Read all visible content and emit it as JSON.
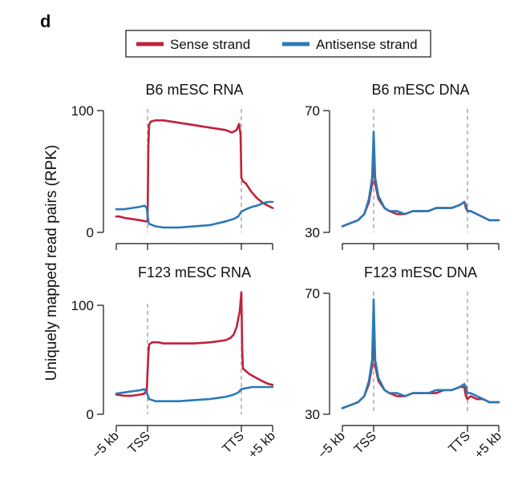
{
  "figure": {
    "panel_letter": "d",
    "ylabel": "Uniquely mapped read pairs (RPK)"
  },
  "legend": {
    "entries": [
      {
        "name": "Sense strand",
        "color": "#c0213a"
      },
      {
        "name": "Antisense strand",
        "color": "#2a7ab5"
      }
    ]
  },
  "x_ticks": [
    "−5 kb",
    "TSS",
    "TTS",
    "+5 kb"
  ],
  "chart_data": [
    {
      "type": "line",
      "title": "B6 mESC RNA",
      "ylim": [
        0,
        100
      ],
      "y_ticks": [
        "0",
        "100"
      ],
      "x": [
        "−5 kb",
        "TSS",
        "TTS",
        "+5 kb"
      ],
      "series": [
        {
          "name": "Sense strand",
          "color": "#c0213a",
          "points": [
            [
              0,
              13
            ],
            [
              0.02,
              13
            ],
            [
              0.05,
              12
            ],
            [
              0.1,
              11
            ],
            [
              0.15,
              10
            ],
            [
              0.19,
              9
            ],
            [
              0.2,
              9
            ],
            [
              0.205,
              70
            ],
            [
              0.21,
              88
            ],
            [
              0.22,
              91
            ],
            [
              0.25,
              92
            ],
            [
              0.3,
              92
            ],
            [
              0.35,
              91
            ],
            [
              0.4,
              90
            ],
            [
              0.45,
              89
            ],
            [
              0.5,
              88
            ],
            [
              0.55,
              87
            ],
            [
              0.6,
              86
            ],
            [
              0.65,
              85
            ],
            [
              0.7,
              84
            ],
            [
              0.74,
              82
            ],
            [
              0.77,
              84
            ],
            [
              0.785,
              89
            ],
            [
              0.795,
              80
            ],
            [
              0.8,
              45
            ],
            [
              0.81,
              42
            ],
            [
              0.83,
              40
            ],
            [
              0.86,
              34
            ],
            [
              0.9,
              28
            ],
            [
              0.94,
              24
            ],
            [
              0.97,
              22
            ],
            [
              1.0,
              20
            ]
          ]
        },
        {
          "name": "Antisense strand",
          "color": "#2a7ab5",
          "points": [
            [
              0,
              19
            ],
            [
              0.05,
              19
            ],
            [
              0.1,
              20
            ],
            [
              0.15,
              21
            ],
            [
              0.18,
              22
            ],
            [
              0.195,
              20
            ],
            [
              0.205,
              9
            ],
            [
              0.21,
              7
            ],
            [
              0.25,
              5
            ],
            [
              0.3,
              4
            ],
            [
              0.4,
              4
            ],
            [
              0.5,
              5
            ],
            [
              0.6,
              6
            ],
            [
              0.7,
              9
            ],
            [
              0.75,
              11
            ],
            [
              0.78,
              13
            ],
            [
              0.8,
              17
            ],
            [
              0.83,
              19
            ],
            [
              0.87,
              21
            ],
            [
              0.9,
              22
            ],
            [
              0.94,
              24
            ],
            [
              0.97,
              25
            ],
            [
              1.0,
              25
            ]
          ]
        }
      ]
    },
    {
      "type": "line",
      "title": "B6 mESC DNA",
      "ylim": [
        30,
        70
      ],
      "y_ticks": [
        "30",
        "70"
      ],
      "x": [
        "−5 kb",
        "TSS",
        "TTS",
        "+5 kb"
      ],
      "series": [
        {
          "name": "Sense strand",
          "color": "#c0213a",
          "points": [
            [
              0,
              32
            ],
            [
              0.05,
              33
            ],
            [
              0.1,
              34
            ],
            [
              0.14,
              36
            ],
            [
              0.17,
              40
            ],
            [
              0.19,
              46
            ],
            [
              0.2,
              57
            ],
            [
              0.21,
              46
            ],
            [
              0.23,
              41
            ],
            [
              0.27,
              38
            ],
            [
              0.3,
              37
            ],
            [
              0.35,
              36
            ],
            [
              0.4,
              36
            ],
            [
              0.45,
              37
            ],
            [
              0.5,
              37
            ],
            [
              0.55,
              37
            ],
            [
              0.6,
              38
            ],
            [
              0.65,
              38
            ],
            [
              0.7,
              38
            ],
            [
              0.75,
              39
            ],
            [
              0.78,
              40
            ],
            [
              0.79,
              38
            ],
            [
              0.8,
              37
            ],
            [
              0.82,
              37
            ],
            [
              0.86,
              36
            ],
            [
              0.9,
              35
            ],
            [
              0.94,
              34
            ],
            [
              0.97,
              34
            ],
            [
              1.0,
              34
            ]
          ]
        },
        {
          "name": "Antisense strand",
          "color": "#2a7ab5",
          "points": [
            [
              0,
              32
            ],
            [
              0.05,
              33
            ],
            [
              0.1,
              34
            ],
            [
              0.14,
              36
            ],
            [
              0.17,
              41
            ],
            [
              0.19,
              48
            ],
            [
              0.2,
              63
            ],
            [
              0.21,
              48
            ],
            [
              0.23,
              42
            ],
            [
              0.27,
              38
            ],
            [
              0.3,
              37
            ],
            [
              0.35,
              37
            ],
            [
              0.4,
              36
            ],
            [
              0.45,
              37
            ],
            [
              0.5,
              37
            ],
            [
              0.55,
              37
            ],
            [
              0.6,
              38
            ],
            [
              0.65,
              38
            ],
            [
              0.7,
              38
            ],
            [
              0.75,
              39
            ],
            [
              0.78,
              40
            ],
            [
              0.79,
              39
            ],
            [
              0.8,
              37
            ],
            [
              0.82,
              37
            ],
            [
              0.86,
              36
            ],
            [
              0.9,
              35
            ],
            [
              0.94,
              34
            ],
            [
              0.97,
              34
            ],
            [
              1.0,
              34
            ]
          ]
        }
      ]
    },
    {
      "type": "line",
      "title": "F123 mESC RNA",
      "ylim": [
        0,
        100
      ],
      "y_ticks": [
        "0",
        "100"
      ],
      "x": [
        "−5 kb",
        "TSS",
        "TTS",
        "+5 kb"
      ],
      "series": [
        {
          "name": "Sense strand",
          "color": "#c0213a",
          "points": [
            [
              0,
              18
            ],
            [
              0.05,
              17
            ],
            [
              0.1,
              17
            ],
            [
              0.15,
              18
            ],
            [
              0.18,
              19
            ],
            [
              0.195,
              22
            ],
            [
              0.205,
              55
            ],
            [
              0.21,
              64
            ],
            [
              0.23,
              66
            ],
            [
              0.27,
              66
            ],
            [
              0.3,
              65
            ],
            [
              0.4,
              65
            ],
            [
              0.5,
              65
            ],
            [
              0.6,
              66
            ],
            [
              0.65,
              67
            ],
            [
              0.7,
              68
            ],
            [
              0.73,
              70
            ],
            [
              0.75,
              73
            ],
            [
              0.77,
              80
            ],
            [
              0.79,
              95
            ],
            [
              0.8,
              112
            ],
            [
              0.805,
              60
            ],
            [
              0.81,
              42
            ],
            [
              0.85,
              37
            ],
            [
              0.9,
              33
            ],
            [
              0.94,
              30
            ],
            [
              0.97,
              28
            ],
            [
              1.0,
              27
            ]
          ]
        },
        {
          "name": "Antisense strand",
          "color": "#2a7ab5",
          "points": [
            [
              0,
              19
            ],
            [
              0.05,
              20
            ],
            [
              0.1,
              21
            ],
            [
              0.15,
              22
            ],
            [
              0.18,
              23
            ],
            [
              0.195,
              20
            ],
            [
              0.21,
              14
            ],
            [
              0.25,
              12
            ],
            [
              0.3,
              12
            ],
            [
              0.4,
              12
            ],
            [
              0.5,
              13
            ],
            [
              0.6,
              14
            ],
            [
              0.7,
              16
            ],
            [
              0.75,
              18
            ],
            [
              0.78,
              20
            ],
            [
              0.8,
              23
            ],
            [
              0.83,
              24
            ],
            [
              0.87,
              25
            ],
            [
              0.9,
              25
            ],
            [
              0.94,
              25
            ],
            [
              0.97,
              25
            ],
            [
              1.0,
              25
            ]
          ]
        }
      ]
    },
    {
      "type": "line",
      "title": "F123 mESC DNA",
      "ylim": [
        30,
        70
      ],
      "y_ticks": [
        "30",
        "70"
      ],
      "x": [
        "−5 kb",
        "TSS",
        "TTS",
        "+5 kb"
      ],
      "series": [
        {
          "name": "Sense strand",
          "color": "#c0213a",
          "points": [
            [
              0,
              32
            ],
            [
              0.05,
              33
            ],
            [
              0.1,
              34
            ],
            [
              0.14,
              36
            ],
            [
              0.17,
              40
            ],
            [
              0.19,
              46
            ],
            [
              0.2,
              56
            ],
            [
              0.21,
              46
            ],
            [
              0.23,
              41
            ],
            [
              0.27,
              38
            ],
            [
              0.3,
              37
            ],
            [
              0.35,
              36
            ],
            [
              0.4,
              36
            ],
            [
              0.45,
              37
            ],
            [
              0.5,
              37
            ],
            [
              0.55,
              37
            ],
            [
              0.6,
              37
            ],
            [
              0.65,
              38
            ],
            [
              0.7,
              38
            ],
            [
              0.75,
              39
            ],
            [
              0.78,
              39
            ],
            [
              0.79,
              36
            ],
            [
              0.8,
              35
            ],
            [
              0.82,
              36
            ],
            [
              0.86,
              35
            ],
            [
              0.9,
              35
            ],
            [
              0.94,
              34
            ],
            [
              0.97,
              34
            ],
            [
              1.0,
              34
            ]
          ]
        },
        {
          "name": "Antisense strand",
          "color": "#2a7ab5",
          "points": [
            [
              0,
              32
            ],
            [
              0.05,
              33
            ],
            [
              0.1,
              34
            ],
            [
              0.14,
              36
            ],
            [
              0.17,
              41
            ],
            [
              0.19,
              48
            ],
            [
              0.2,
              68
            ],
            [
              0.21,
              48
            ],
            [
              0.23,
              42
            ],
            [
              0.27,
              38
            ],
            [
              0.3,
              37
            ],
            [
              0.35,
              37
            ],
            [
              0.4,
              36
            ],
            [
              0.45,
              37
            ],
            [
              0.5,
              37
            ],
            [
              0.55,
              37
            ],
            [
              0.6,
              38
            ],
            [
              0.65,
              38
            ],
            [
              0.7,
              38
            ],
            [
              0.75,
              39
            ],
            [
              0.78,
              40
            ],
            [
              0.79,
              39
            ],
            [
              0.8,
              37
            ],
            [
              0.82,
              37
            ],
            [
              0.86,
              36
            ],
            [
              0.9,
              35
            ],
            [
              0.94,
              34
            ],
            [
              0.97,
              34
            ],
            [
              1.0,
              34
            ]
          ]
        }
      ]
    }
  ]
}
